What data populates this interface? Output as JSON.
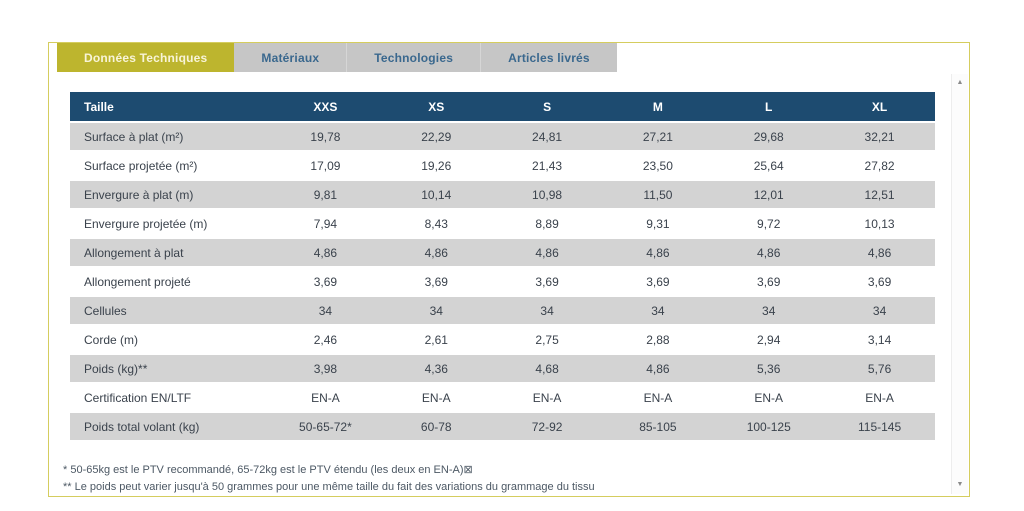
{
  "tabs": [
    {
      "label": "Données Techniques",
      "active": true
    },
    {
      "label": "Matériaux",
      "active": false
    },
    {
      "label": "Technologies",
      "active": false
    },
    {
      "label": "Articles livrés",
      "active": false
    }
  ],
  "table": {
    "header": [
      "Taille",
      "XXS",
      "XS",
      "S",
      "M",
      "L",
      "XL"
    ],
    "rows": [
      {
        "label": "Surface à plat (m²)",
        "values": [
          "19,78",
          "22,29",
          "24,81",
          "27,21",
          "29,68",
          "32,21"
        ]
      },
      {
        "label": "Surface projetée (m²)",
        "values": [
          "17,09",
          "19,26",
          "21,43",
          "23,50",
          "25,64",
          "27,82"
        ]
      },
      {
        "label": "Envergure à plat (m)",
        "values": [
          "9,81",
          "10,14",
          "10,98",
          "11,50",
          "12,01",
          "12,51"
        ]
      },
      {
        "label": "Envergure projetée (m)",
        "values": [
          "7,94",
          "8,43",
          "8,89",
          "9,31",
          "9,72",
          "10,13"
        ]
      },
      {
        "label": "Allongement à plat",
        "values": [
          "4,86",
          "4,86",
          "4,86",
          "4,86",
          "4,86",
          "4,86"
        ]
      },
      {
        "label": "Allongement projeté",
        "values": [
          "3,69",
          "3,69",
          "3,69",
          "3,69",
          "3,69",
          "3,69"
        ]
      },
      {
        "label": "Cellules",
        "values": [
          "34",
          "34",
          "34",
          "34",
          "34",
          "34"
        ]
      },
      {
        "label": "Corde (m)",
        "values": [
          "2,46",
          "2,61",
          "2,75",
          "2,88",
          "2,94",
          "3,14"
        ]
      },
      {
        "label": "Poids (kg)**",
        "values": [
          "3,98",
          "4,36",
          "4,68",
          "4,86",
          "5,36",
          "5,76"
        ]
      },
      {
        "label": "Certification EN/LTF",
        "values": [
          "EN-A",
          "EN-A",
          "EN-A",
          "EN-A",
          "EN-A",
          "EN-A"
        ]
      },
      {
        "label": "Poids total volant (kg)",
        "values": [
          "50-65-72*",
          "60-78",
          "72-92",
          "85-105",
          "100-125",
          "115-145"
        ]
      }
    ]
  },
  "footnotes": [
    "* 50-65kg est le PTV recommandé, 65-72kg est le PTV étendu (les deux en EN-A)⊠",
    "** Le poids peut varier jusqu'à 50 grammes pour une même taille du fait des variations du grammage du tissu"
  ],
  "scrollbar": {
    "up_icon": "▲",
    "down_icon": "▼"
  },
  "colors": {
    "frame_border": "#d5cd5e",
    "tab_active_bg": "#bdb52e",
    "tab_active_text": "#f8f4d8",
    "tab_inactive_bg": "#c6c6c6",
    "tab_inactive_text": "#3a688e",
    "table_header_bg": "#1d4b70",
    "table_header_text": "#ffffff",
    "row_alt_bg": "#d3d3d3",
    "cell_text": "#3a424c",
    "footnote_text": "#4c5864"
  }
}
